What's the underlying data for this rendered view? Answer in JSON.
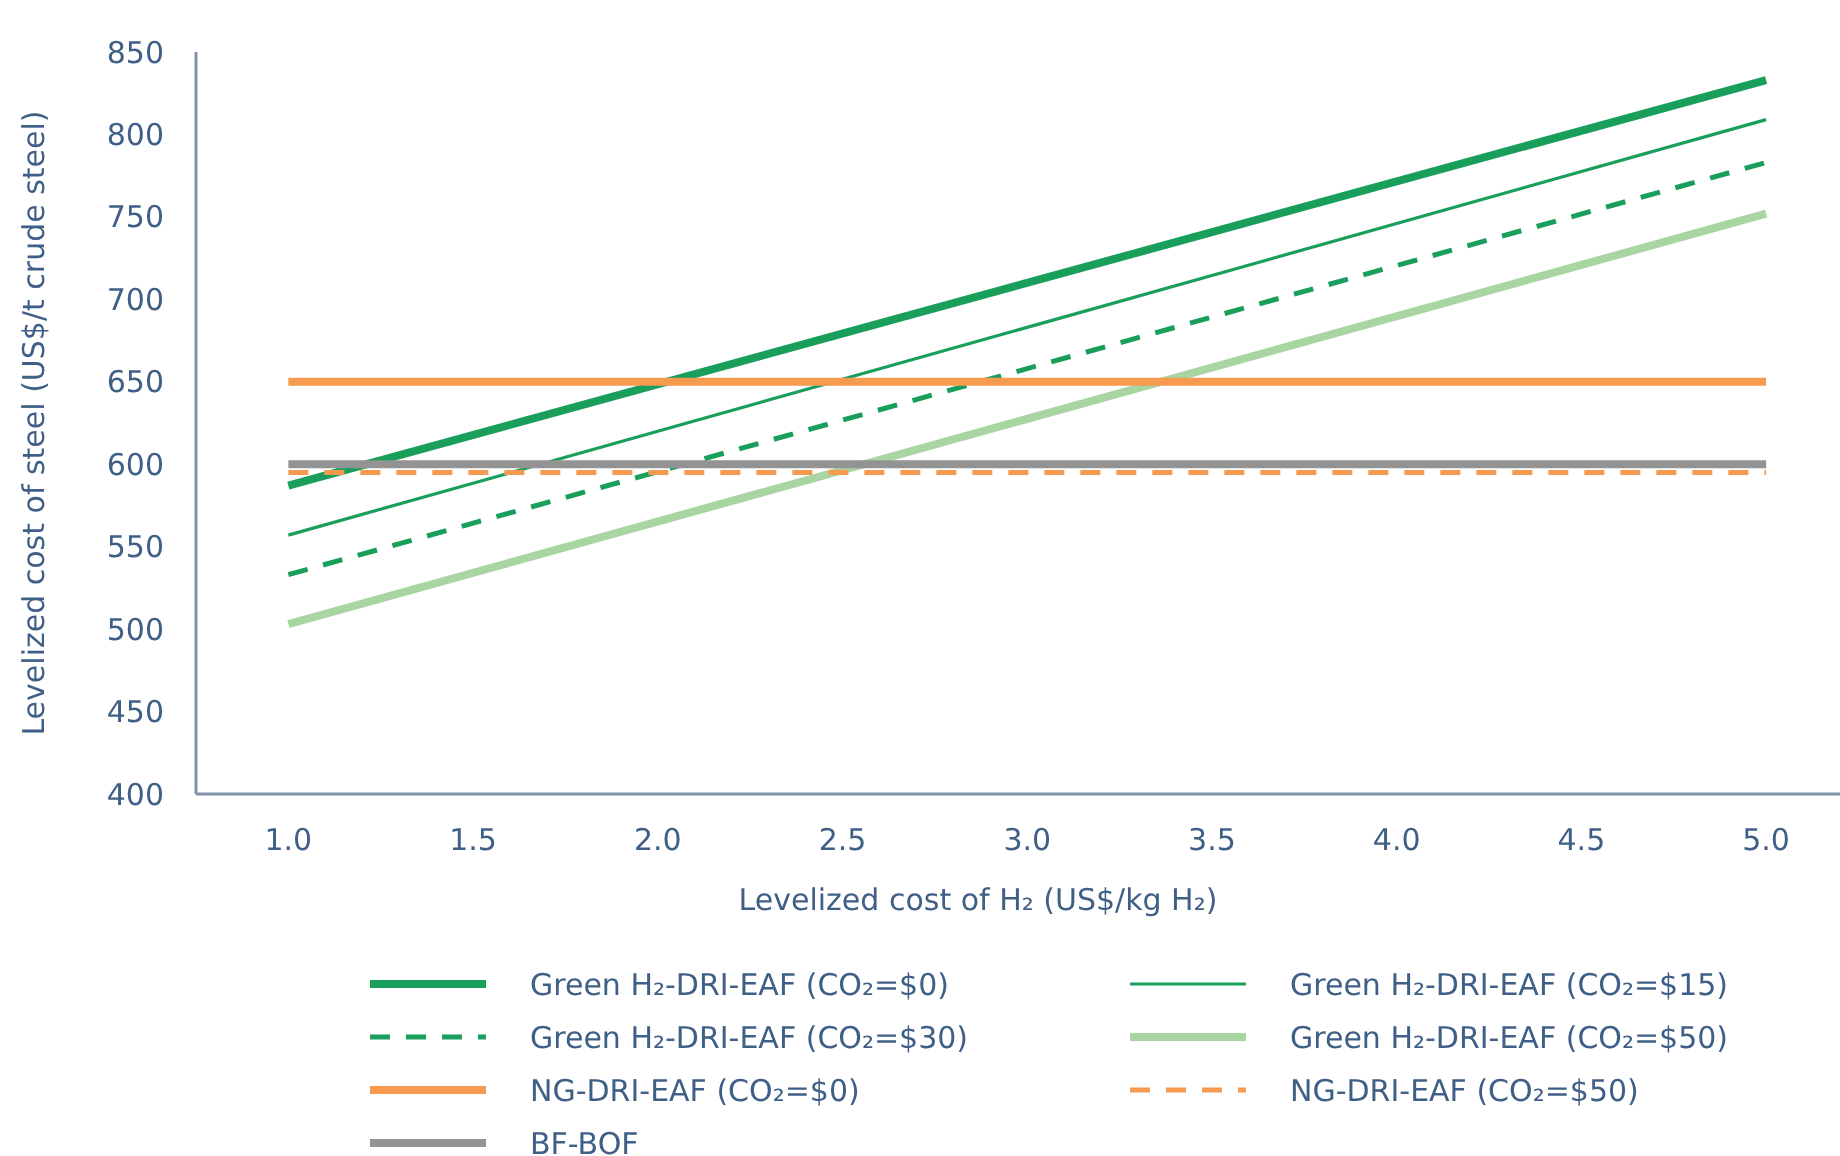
{
  "chart_data": {
    "type": "line",
    "xlabel": "Levelized cost of H₂ (US$/kg H₂)",
    "ylabel": "Levelized cost of steel (US$/t crude steel)",
    "x": [
      1.0,
      5.0
    ],
    "xlim": [
      0.75,
      5.2
    ],
    "xticks": [
      {
        "value": 1,
        "label": "1.0"
      },
      {
        "value": 1.5,
        "label": "1.5"
      },
      {
        "value": 2,
        "label": "2.0"
      },
      {
        "value": 2.5,
        "label": "2.5"
      },
      {
        "value": 3,
        "label": "3.0"
      },
      {
        "value": 3.5,
        "label": "3.5"
      },
      {
        "value": 4,
        "label": "4.0"
      },
      {
        "value": 4.5,
        "label": "4.5"
      },
      {
        "value": 5,
        "label": "5.0"
      }
    ],
    "ylim": [
      400,
      850
    ],
    "yticks": [
      400,
      450,
      500,
      550,
      600,
      650,
      700,
      750,
      800,
      850
    ],
    "grid": false,
    "legend": "bottom",
    "marker": "none",
    "series": [
      {
        "name": "Green H₂-DRI-EAF (CO₂=$0)",
        "color": "#1a9e5c",
        "values": [
          587,
          833
        ],
        "line_style": "solid"
      },
      {
        "name": "Green H₂-DRI-EAF (CO₂=$15)",
        "color": "#1a9e5c",
        "values": [
          557,
          809
        ],
        "line_style": "solid"
      },
      {
        "name": "Green H₂-DRI-EAF (CO₂=$30)",
        "color": "#1a9e5c",
        "values": [
          533,
          783
        ],
        "line_style": "dashed"
      },
      {
        "name": "Green H₂-DRI-EAF (CO₂=$50)",
        "color": "#a8d5a2",
        "values": [
          503,
          752
        ],
        "line_style": "solid"
      },
      {
        "name": "NG-DRI-EAF (CO₂=$0)",
        "color": "#f59a4f",
        "values": [
          650,
          650
        ],
        "line_style": "solid"
      },
      {
        "name": "NG-DRI-EAF (CO₂=$50)",
        "color": "#f59a4f",
        "values": [
          595,
          595
        ],
        "line_style": "dashed"
      },
      {
        "name": "BF-BOF",
        "color": "#939393",
        "values": [
          600,
          600
        ],
        "line_style": "solid"
      }
    ]
  }
}
